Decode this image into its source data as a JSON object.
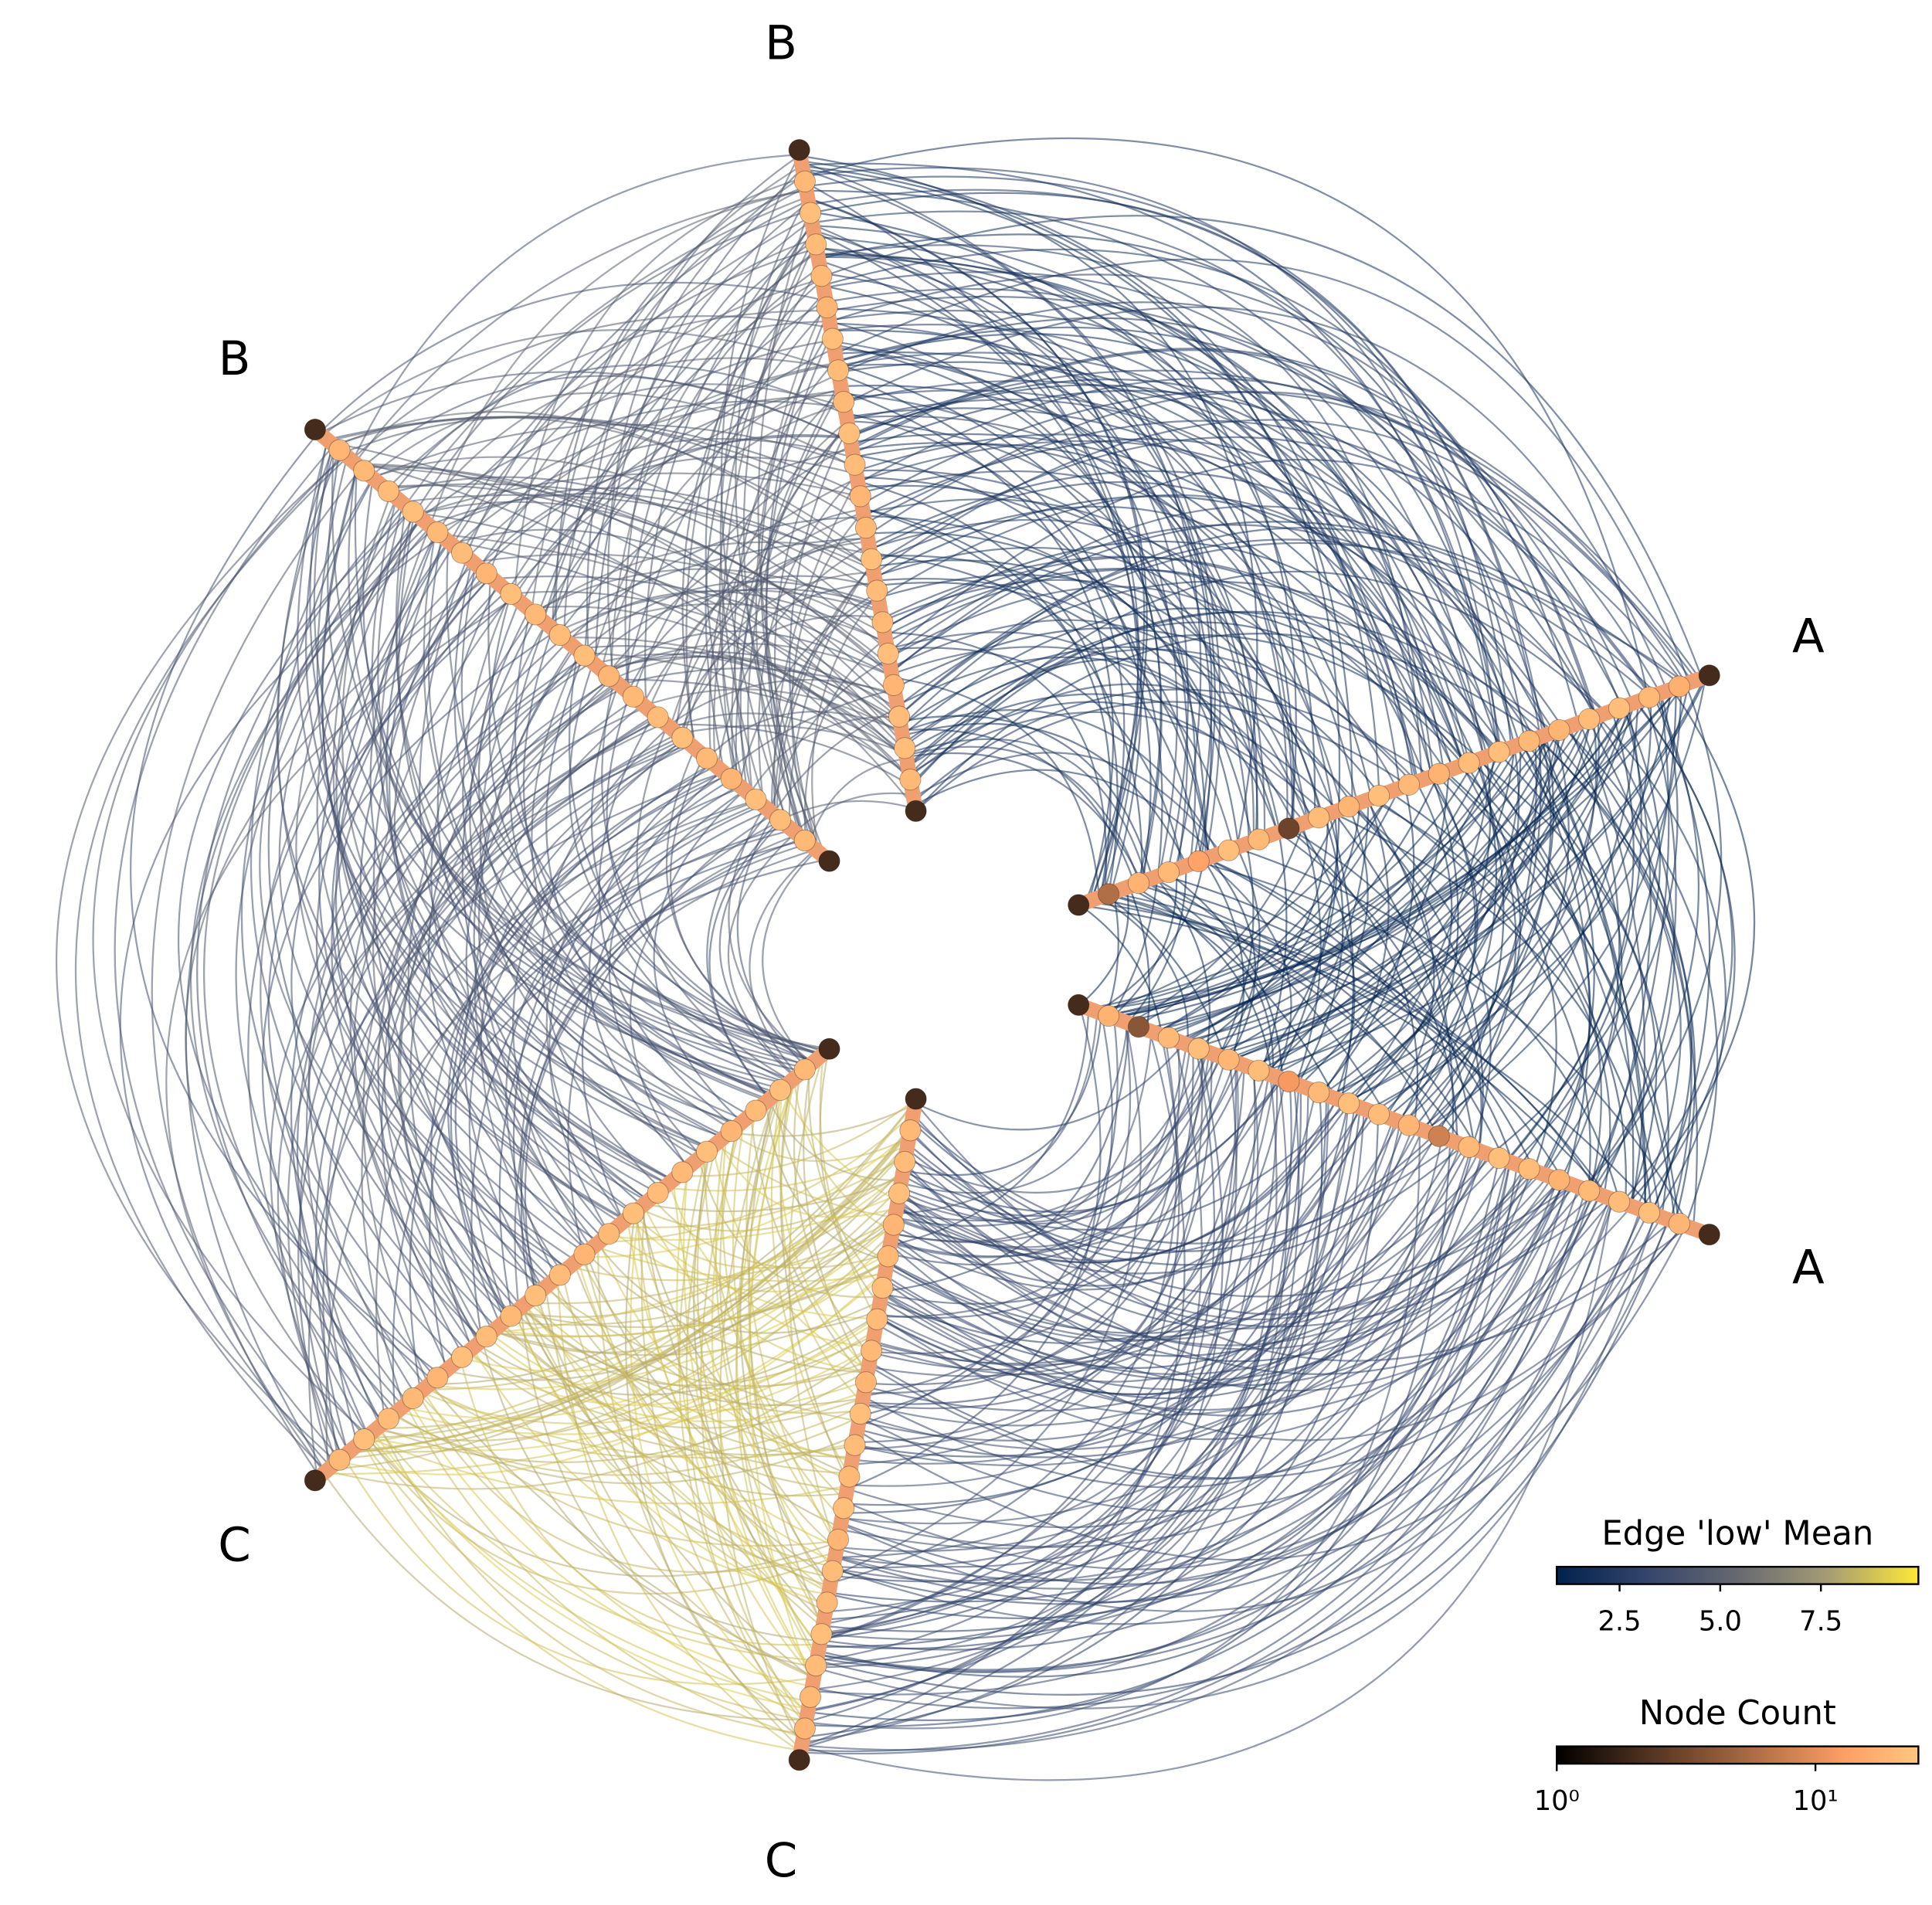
{
  "chart_data": {
    "type": "hive",
    "axes": [
      {
        "label": "A",
        "node_counts": [
          2,
          6,
          18,
          20,
          14,
          22,
          20,
          3,
          21,
          19,
          22,
          20,
          18,
          21,
          22,
          20,
          19,
          21,
          22,
          20,
          17,
          2
        ]
      },
      {
        "label": "A",
        "node_counts": [
          2,
          18,
          4,
          20,
          22,
          19,
          21,
          12,
          20,
          22,
          21,
          19,
          8,
          20,
          22,
          21,
          18,
          20,
          21,
          22,
          19,
          2
        ]
      },
      {
        "label": "B",
        "node_counts": [
          2,
          20,
          22,
          21,
          19,
          22,
          20,
          21,
          22,
          20,
          19,
          21,
          22,
          20,
          21,
          22,
          19,
          20,
          21,
          22,
          20,
          2
        ]
      },
      {
        "label": "B",
        "node_counts": [
          2,
          20,
          21,
          22,
          19,
          20,
          22,
          21,
          20,
          19,
          22,
          21,
          20,
          22,
          19,
          21,
          20,
          22,
          21,
          20,
          19,
          2
        ]
      },
      {
        "label": "C",
        "node_counts": [
          2,
          20,
          22,
          21,
          19,
          22,
          20,
          21,
          22,
          20,
          19,
          21,
          22,
          20,
          21,
          22,
          19,
          20,
          21,
          22,
          20,
          2
        ]
      },
      {
        "label": "C",
        "node_counts": [
          2,
          20,
          21,
          22,
          19,
          20,
          22,
          21,
          20,
          19,
          22,
          21,
          20,
          22,
          19,
          21,
          20,
          22,
          21,
          20,
          19,
          2
        ]
      }
    ],
    "edge_groups": [
      {
        "from": 0,
        "to": 1,
        "low_mean": 1.3
      },
      {
        "from": 2,
        "to": 0,
        "low_mean": 2.0
      },
      {
        "from": 5,
        "to": 1,
        "low_mean": 3.0
      },
      {
        "from": 3,
        "to": 2,
        "low_mean": 4.5
      },
      {
        "from": 3,
        "to": 4,
        "low_mean": 4.0
      },
      {
        "from": 4,
        "to": 5,
        "low_mean": 8.5
      }
    ],
    "edge_colorbar": {
      "title": "Edge 'low' Mean",
      "colormap": "cividis",
      "lim": [
        0.94,
        9.92
      ],
      "ticks": [
        2.5,
        {
          "value": 5,
          "label": "5.0"
        },
        7.5
      ]
    },
    "node_colorbar": {
      "title": "Node Count",
      "colormap": "copper",
      "log": true,
      "lim": [
        1,
        25
      ],
      "ticks": [
        {
          "value": 1,
          "label": "10⁰"
        },
        {
          "value": 10,
          "label": "10¹"
        }
      ]
    }
  }
}
